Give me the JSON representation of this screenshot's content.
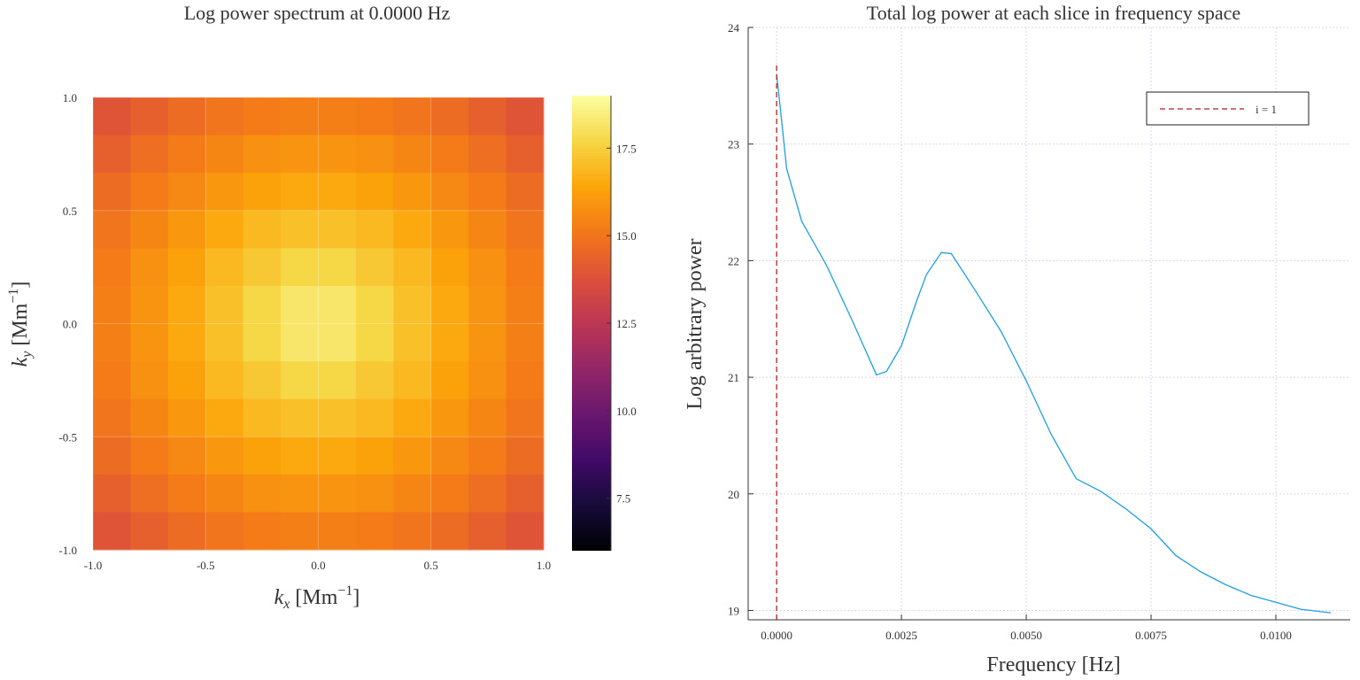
{
  "chart_data": [
    {
      "type": "heatmap",
      "title": "Log power spectrum at 0.0000 Hz",
      "x_label": [
        "k",
        "x",
        " [Mm",
        "−1",
        "]"
      ],
      "y_label": [
        "k",
        "y",
        " [Mm",
        "−1",
        "]"
      ],
      "xlim": [
        -1.0,
        1.0
      ],
      "ylim": [
        -1.0,
        1.0
      ],
      "xticks": [
        {
          "value": -1,
          "label": "-1.0"
        },
        {
          "value": -0.5,
          "label": "-0.5"
        },
        {
          "value": 0,
          "label": "0.0"
        },
        0.5,
        {
          "value": 1,
          "label": "1.0"
        }
      ],
      "yticks": [
        {
          "value": -1,
          "label": "-1.0"
        },
        {
          "value": -0.5,
          "label": "-0.5"
        },
        {
          "value": 0,
          "label": "0.0"
        },
        0.5,
        {
          "value": 1,
          "label": "1.0"
        }
      ],
      "colormap": "inferno",
      "clim": [
        6.0,
        19.0
      ],
      "colorbar_ticks": [
        7.5,
        {
          "value": 10,
          "label": "10.0"
        },
        12.5,
        {
          "value": 15,
          "label": "15.0"
        },
        17.5
      ],
      "z": [
        [
          13.9,
          14.3,
          14.7,
          15.0,
          15.2,
          15.3,
          15.3,
          15.2,
          15.0,
          14.7,
          14.3,
          13.9
        ],
        [
          14.3,
          14.8,
          15.2,
          15.5,
          15.8,
          15.9,
          15.9,
          15.8,
          15.5,
          15.2,
          14.8,
          14.3
        ],
        [
          14.7,
          15.2,
          15.6,
          16.0,
          16.3,
          16.5,
          16.5,
          16.3,
          16.0,
          15.6,
          15.2,
          14.7
        ],
        [
          15.0,
          15.5,
          16.0,
          16.5,
          16.9,
          17.1,
          17.1,
          16.9,
          16.5,
          16.0,
          15.5,
          15.0
        ],
        [
          15.2,
          15.8,
          16.3,
          16.9,
          17.3,
          17.7,
          17.7,
          17.3,
          16.9,
          16.3,
          15.8,
          15.2
        ],
        [
          15.3,
          15.9,
          16.5,
          17.1,
          17.7,
          18.2,
          18.2,
          17.7,
          17.1,
          16.5,
          15.9,
          15.3
        ],
        [
          15.3,
          15.9,
          16.5,
          17.1,
          17.7,
          18.2,
          18.2,
          17.7,
          17.1,
          16.5,
          15.9,
          15.3
        ],
        [
          15.2,
          15.8,
          16.3,
          16.9,
          17.3,
          17.7,
          17.7,
          17.3,
          16.9,
          16.3,
          15.8,
          15.2
        ],
        [
          15.0,
          15.5,
          16.0,
          16.5,
          16.9,
          17.1,
          17.1,
          16.9,
          16.5,
          16.0,
          15.5,
          15.0
        ],
        [
          14.7,
          15.2,
          15.6,
          16.0,
          16.3,
          16.5,
          16.5,
          16.3,
          16.0,
          15.6,
          15.2,
          14.7
        ],
        [
          14.3,
          14.8,
          15.2,
          15.5,
          15.8,
          15.9,
          15.9,
          15.8,
          15.5,
          15.2,
          14.8,
          14.3
        ],
        [
          13.9,
          14.3,
          14.7,
          15.0,
          15.2,
          15.3,
          15.3,
          15.2,
          15.0,
          14.7,
          14.3,
          13.9
        ]
      ]
    },
    {
      "type": "line",
      "title": "Total log power at each slice in frequency space",
      "x_label": "Frequency [Hz]",
      "y_label": "Log arbitrary power",
      "xlim": [
        -0.00057,
        0.01149
      ],
      "ylim": [
        18.92,
        24.0
      ],
      "xticks": [
        {
          "value": 0,
          "label": "0.0000"
        },
        {
          "value": 0.0025,
          "label": "0.0025"
        },
        {
          "value": 0.005,
          "label": "0.0050"
        },
        {
          "value": 0.0075,
          "label": "0.0075"
        },
        {
          "value": 0.01,
          "label": "0.0100"
        }
      ],
      "yticks": [
        19,
        20,
        21,
        22,
        23,
        24
      ],
      "grid": true,
      "color": "#1f9ee0",
      "x": [
        0,
        0.0001,
        0.0002,
        0.0005,
        0.001,
        0.0015,
        0.002,
        0.0022,
        0.0025,
        0.0028,
        0.003,
        0.0033,
        0.0035,
        0.004,
        0.0045,
        0.005,
        0.0055,
        0.006,
        0.0065,
        0.007,
        0.0075,
        0.008,
        0.0085,
        0.009,
        0.0095,
        0.01,
        0.0105,
        0.0111
      ],
      "values": [
        23.6,
        23.2,
        22.79,
        22.34,
        21.96,
        21.5,
        21.02,
        21.05,
        21.27,
        21.65,
        21.88,
        22.07,
        22.06,
        21.73,
        21.39,
        20.97,
        20.51,
        20.13,
        20.02,
        19.87,
        19.7,
        19.47,
        19.33,
        19.22,
        19.13,
        19.07,
        19.01,
        18.98
      ],
      "vline": {
        "name": "i = 1",
        "x": 0,
        "top": 23.7,
        "color": "#b22222"
      }
    }
  ]
}
